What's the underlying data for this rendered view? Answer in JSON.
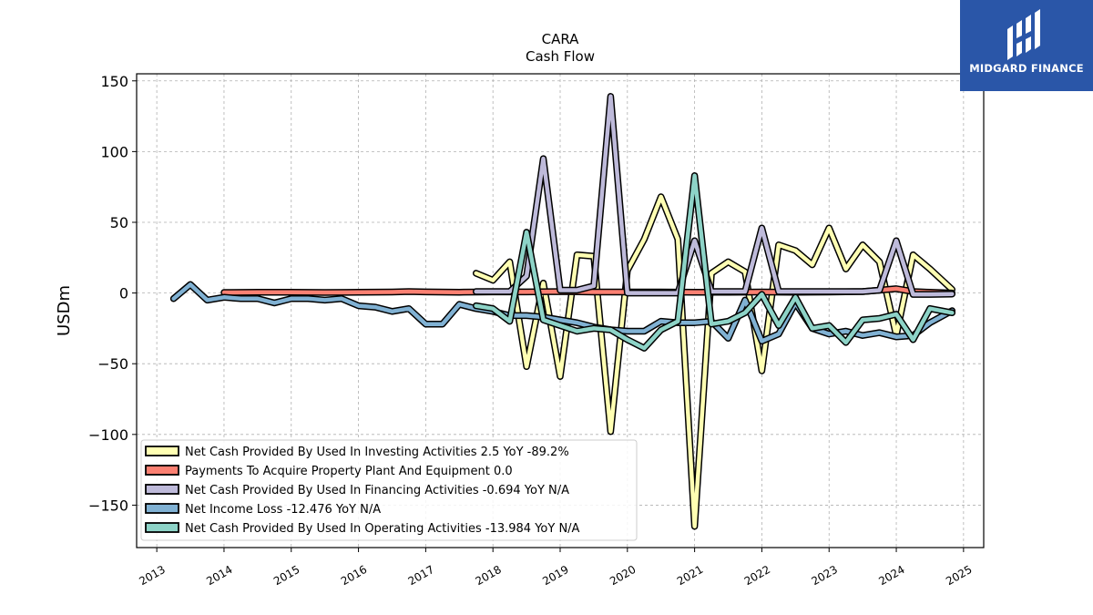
{
  "logo": {
    "text": "MIDGARD FINANCE"
  },
  "chart_data": {
    "type": "line",
    "title": "CARA",
    "subtitle": "Cash Flow",
    "ylabel": "USDm",
    "xlabel": "",
    "ylim": [
      -180,
      155
    ],
    "xlim": [
      2012.7,
      2025.3
    ],
    "yticks": [
      150,
      100,
      50,
      0,
      -50,
      -100,
      -150
    ],
    "ytick_labels": [
      "150",
      "100",
      "50",
      "0",
      "−50",
      "−100",
      "−150"
    ],
    "xticks": [
      2013,
      2014,
      2015,
      2016,
      2017,
      2018,
      2019,
      2020,
      2021,
      2022,
      2023,
      2024,
      2025
    ],
    "xtick_labels": [
      "2013",
      "2014",
      "2015",
      "2016",
      "2017",
      "2018",
      "2019",
      "2020",
      "2021",
      "2022",
      "2023",
      "2024",
      "2025"
    ],
    "grid": true,
    "legend_position": "bottom-left",
    "series": [
      {
        "name": "Net Cash Provided By Used In Investing Activities",
        "legend_label": "Net Cash Provided By Used In Investing Activities  2.5 YoY -89.2%",
        "color": "#ffffb3",
        "x": [
          2017.75,
          2018.0,
          2018.25,
          2018.5,
          2018.75,
          2019.0,
          2019.25,
          2019.5,
          2019.75,
          2020.0,
          2020.25,
          2020.5,
          2020.75,
          2021.0,
          2021.25,
          2021.5,
          2021.75,
          2022.0,
          2022.25,
          2022.5,
          2022.75,
          2023.0,
          2023.25,
          2023.5,
          2023.75,
          2024.0,
          2024.25,
          2024.5,
          2024.83
        ],
        "y": [
          14,
          9,
          22,
          -52,
          7,
          -59,
          27,
          26,
          -98,
          16,
          38,
          68,
          38,
          -165,
          14,
          22,
          15,
          -55,
          34,
          30,
          20,
          46,
          17,
          34,
          22,
          -30,
          27,
          17,
          2.5
        ]
      },
      {
        "name": "Payments To Acquire Property Plant And Equipment",
        "legend_label": "Payments To Acquire Property Plant And Equipment  0.0",
        "color": "#fb8072",
        "x": [
          2014.0,
          2014.5,
          2015.0,
          2015.5,
          2016.0,
          2016.5,
          2016.75,
          2017.0,
          2017.5,
          2018.0,
          2018.5,
          2019.0,
          2019.5,
          2020.0,
          2020.5,
          2021.0,
          2021.5,
          2022.0,
          2022.5,
          2023.0,
          2023.5,
          2023.75,
          2024.0,
          2024.25,
          2024.5,
          2024.83
        ],
        "y": [
          0.4,
          0.5,
          0.5,
          0.4,
          0.5,
          0.7,
          1.0,
          0.8,
          0.6,
          0.8,
          0.8,
          1.0,
          0.7,
          0.7,
          0.7,
          0.5,
          0.5,
          0.7,
          0.6,
          0.7,
          1.0,
          2.0,
          3.0,
          1.0,
          0.5,
          0.0
        ]
      },
      {
        "name": "Net Cash Provided By Used In Financing Activities",
        "legend_label": "Net Cash Provided By Used In Financing Activities  -0.694 YoY N/A",
        "color": "#bebada",
        "x": [
          2017.75,
          2018.0,
          2018.25,
          2018.5,
          2018.75,
          2019.0,
          2019.25,
          2019.5,
          2019.75,
          2020.0,
          2020.25,
          2020.5,
          2020.75,
          2021.0,
          2021.25,
          2021.5,
          2021.75,
          2022.0,
          2022.25,
          2022.5,
          2022.75,
          2023.0,
          2023.25,
          2023.5,
          2023.75,
          2024.0,
          2024.25,
          2024.5,
          2024.83
        ],
        "y": [
          1,
          1,
          1,
          12,
          95,
          2,
          2,
          5,
          139,
          0,
          0,
          0,
          0,
          37,
          1,
          1,
          1,
          46,
          1,
          1,
          1,
          1,
          1,
          1,
          2,
          37,
          -1,
          -1,
          -0.694
        ]
      },
      {
        "name": "Net Income Loss",
        "legend_label": "Net Income Loss  -12.476 YoY N/A",
        "color": "#80b1d3",
        "x": [
          2013.25,
          2013.5,
          2013.75,
          2014.0,
          2014.25,
          2014.5,
          2014.75,
          2015.0,
          2015.25,
          2015.5,
          2015.75,
          2016.0,
          2016.25,
          2016.5,
          2016.75,
          2017.0,
          2017.25,
          2017.5,
          2017.75,
          2018.0,
          2018.25,
          2018.5,
          2018.75,
          2019.0,
          2019.25,
          2019.5,
          2019.75,
          2020.0,
          2020.25,
          2020.5,
          2020.75,
          2021.0,
          2021.25,
          2021.5,
          2021.75,
          2022.0,
          2022.25,
          2022.5,
          2022.75,
          2023.0,
          2023.25,
          2023.5,
          2023.75,
          2024.0,
          2024.25,
          2024.5,
          2024.83
        ],
        "y": [
          -4,
          6,
          -5,
          -3,
          -4,
          -4,
          -7,
          -4,
          -4,
          -5,
          -4,
          -9,
          -10,
          -13,
          -11,
          -22,
          -22,
          -8,
          -11,
          -13,
          -16,
          -16,
          -17,
          -19,
          -21,
          -24,
          -26,
          -27,
          -27,
          -20,
          -21,
          -21,
          -20,
          -32,
          -5,
          -34,
          -29,
          -7,
          -25,
          -29,
          -27,
          -30,
          -28,
          -31,
          -30,
          -21,
          -12.476
        ]
      },
      {
        "name": "Net Cash Provided By Used In Operating Activities",
        "legend_label": "Net Cash Provided By Used In Operating Activities  -13.984 YoY N/A",
        "color": "#8dd3c7",
        "x": [
          2017.75,
          2018.0,
          2018.25,
          2018.5,
          2018.75,
          2019.0,
          2019.25,
          2019.5,
          2019.75,
          2020.0,
          2020.25,
          2020.5,
          2020.75,
          2021.0,
          2021.25,
          2021.5,
          2021.75,
          2022.0,
          2022.25,
          2022.5,
          2022.75,
          2023.0,
          2023.25,
          2023.5,
          2023.75,
          2024.0,
          2024.25,
          2024.5,
          2024.83
        ],
        "y": [
          -9,
          -11,
          -20,
          43,
          -19,
          -23,
          -27,
          -25,
          -26,
          -33,
          -39,
          -26,
          -20,
          83,
          -22,
          -20,
          -14,
          -1,
          -23,
          -3,
          -25,
          -23,
          -35,
          -19,
          -18,
          -15,
          -33,
          -11,
          -13.984
        ]
      }
    ]
  }
}
